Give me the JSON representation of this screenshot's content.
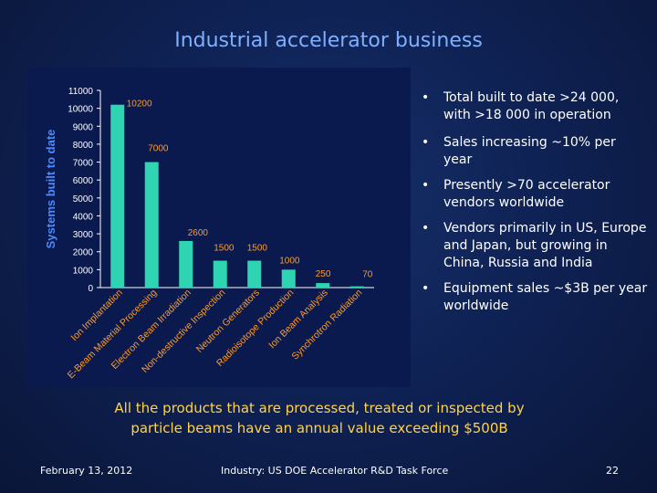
{
  "slide": {
    "title": "Industrial accelerator business",
    "bullets": [
      "Total built to date >24 000, with >18 000 in operation",
      "Sales increasing ~10% per year",
      "Presently >70 accelerator vendors worldwide",
      "Vendors primarily in US, Europe and Japan, but growing in China, Russia and India",
      "Equipment sales ~$3B per year worldwide"
    ],
    "note": "All the products that are processed, treated or inspected by particle beams have an annual value exceeding $500B",
    "footer": {
      "date": "February 13, 2012",
      "source": "Industry: US DOE Accelerator R&D Task Force",
      "page": "22"
    }
  },
  "chart_data": {
    "type": "bar",
    "categories": [
      "Ion Implantation",
      "E-Beam Material Processing",
      "Electron Beam Irradiation",
      "Non-destructive Inspection",
      "Neutron Generators",
      "Radioisotope Production",
      "Ion Beam Analysis",
      "Synchrotron Radiation"
    ],
    "values": [
      10200,
      7000,
      2600,
      1500,
      1500,
      1000,
      250,
      70
    ],
    "data_labels": [
      "10200",
      "7000",
      "2600",
      "1500",
      "1500",
      "1000",
      "250",
      "70"
    ],
    "ylabel": "Systems built to date",
    "ylim": [
      0,
      11000
    ],
    "yticks": [
      "0",
      "1000",
      "2000",
      "3000",
      "4000",
      "5000",
      "6000",
      "7000",
      "8000",
      "9000",
      "10000",
      "11000"
    ],
    "grid": false,
    "colors": {
      "bar": "#2fd5b2",
      "panel": "#0a1a4e",
      "axis": "#ffffff",
      "label": "#ff9a2a"
    }
  }
}
